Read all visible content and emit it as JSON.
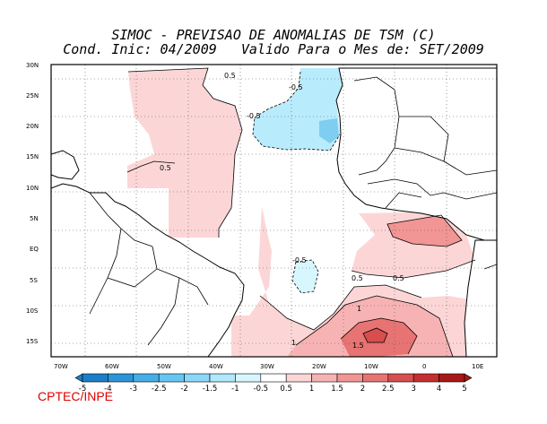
{
  "title": {
    "line1": "SIMOC - PREVISAO DE ANOMALIAS DE TSM (C)",
    "line2": "Cond. Inic: 04/2009   Valido Para o Mes de: SET/2009"
  },
  "axes": {
    "lat_labels": [
      "30N",
      "25N",
      "20N",
      "15N",
      "10N",
      "5N",
      "EQ",
      "5S",
      "10S",
      "15S"
    ],
    "lon_labels": [
      "70W",
      "60W",
      "50W",
      "40W",
      "30W",
      "20W",
      "10W",
      "0",
      "10E"
    ]
  },
  "contour_labels": {
    "p05_nw": "0.5",
    "m05_top": "-0.5",
    "m05_left": "-0.5",
    "p05_w": "0.5",
    "m05_center": "-0.5",
    "p05_gulf1": "0.5",
    "p05_gulf2": "0.5",
    "p1_s1": "1",
    "p1_s2": "1",
    "p15_s": "1.5"
  },
  "colorbar": {
    "labels": [
      "-5",
      "-4",
      "-3",
      "-2.5",
      "-2",
      "-1.5",
      "-1",
      "-0.5",
      "0.5",
      "1",
      "1.5",
      "2",
      "2.5",
      "3",
      "4",
      "5"
    ],
    "colors": [
      "#1a7fc8",
      "#2b95d8",
      "#45aee8",
      "#66c6f2",
      "#8ad8f8",
      "#b0e8fc",
      "#d8f6fe",
      "#ffffff",
      "#fcd6d6",
      "#f7b3b3",
      "#f29595",
      "#e87373",
      "#d84e4e",
      "#c43030",
      "#a81818"
    ]
  },
  "credit": "CPTEC/INPE"
}
